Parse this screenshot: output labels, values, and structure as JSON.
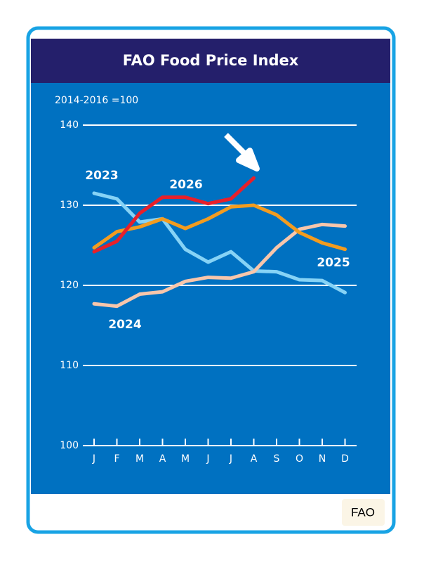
{
  "chart_data": {
    "type": "line",
    "title": "FAO Food Price Index",
    "subtitle": "2014-2016 =100",
    "categories": [
      "J",
      "F",
      "M",
      "A",
      "M",
      "J",
      "J",
      "A",
      "S",
      "O",
      "N",
      "D"
    ],
    "series": [
      {
        "name": "2023",
        "color": "#86d3f6",
        "values": [
          131.5,
          130.8,
          127.9,
          128.3,
          124.5,
          122.9,
          124.2,
          121.8,
          121.7,
          120.7,
          120.6,
          119.1
        ]
      },
      {
        "name": "2024",
        "color": "#f8c6ab",
        "values": [
          117.7,
          117.4,
          118.9,
          119.2,
          120.5,
          121.0,
          120.9,
          121.7,
          124.7,
          127.0,
          127.6,
          127.4
        ]
      },
      {
        "name": "2025",
        "color": "#f39c1f",
        "values": [
          124.7,
          126.7,
          127.3,
          128.3,
          127.1,
          128.3,
          129.8,
          130.0,
          128.8,
          126.6,
          125.3,
          124.5
        ]
      },
      {
        "name": "2026",
        "color": "#e8202a",
        "values": [
          124.2,
          125.5,
          129.0,
          131.0,
          131.0,
          130.2,
          130.8,
          133.4,
          null,
          null,
          null,
          null
        ]
      }
    ],
    "ylim": [
      100,
      140
    ],
    "yticks": [
      100,
      110,
      120,
      130,
      140
    ],
    "grid": true,
    "source": "FAO"
  }
}
